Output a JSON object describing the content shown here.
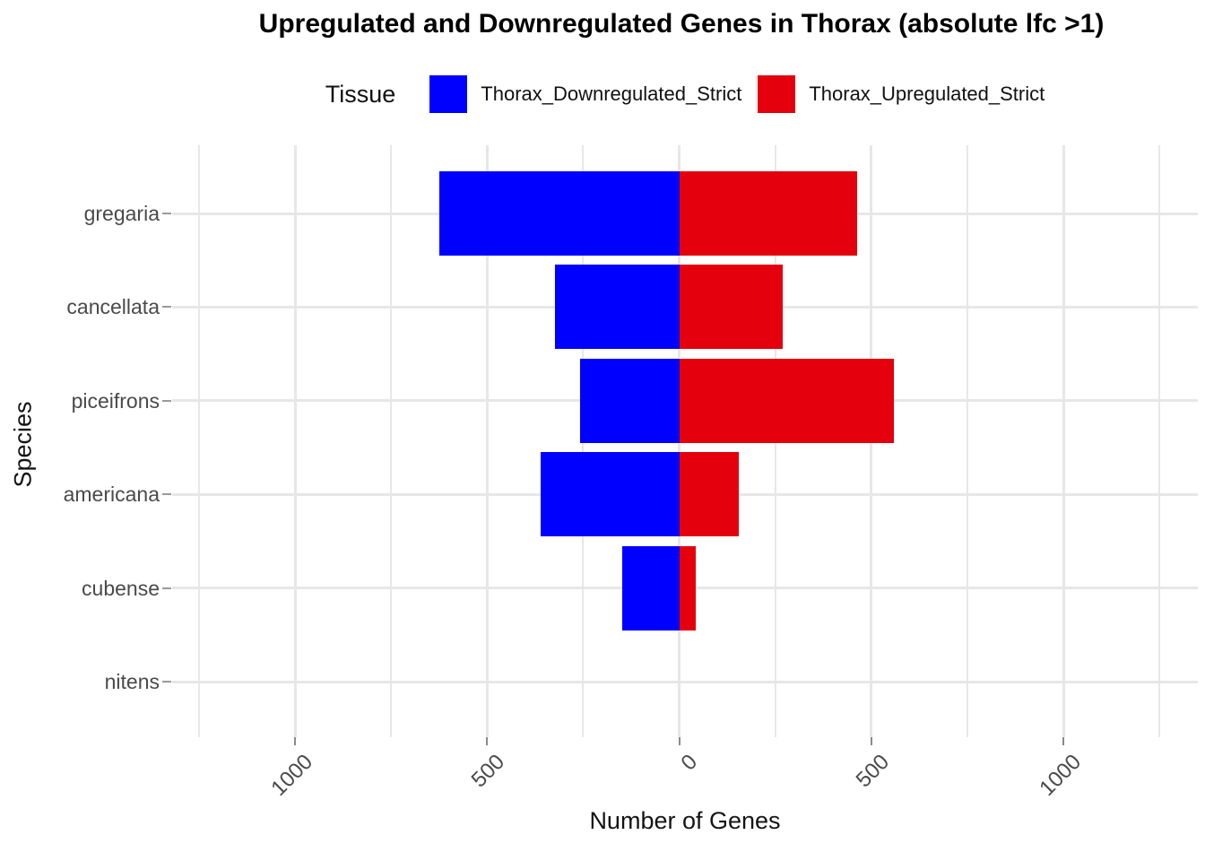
{
  "title": "Upregulated and Downregulated Genes in Thorax (absolute lfc >1)",
  "legend": {
    "title": "Tissue",
    "items": [
      {
        "label": "Thorax_Downregulated_Strict",
        "color": "#0000ff"
      },
      {
        "label": "Thorax_Upregulated_Strict",
        "color": "#e4000c"
      }
    ]
  },
  "chart_data": {
    "type": "bar",
    "orientation": "horizontal-diverging",
    "title": "Upregulated and Downregulated Genes in Thorax (absolute lfc >1)",
    "xlabel": "Number of Genes",
    "ylabel": "Species",
    "categories": [
      "gregaria",
      "cancellata",
      "piceifrons",
      "americana",
      "cubense",
      "nitens"
    ],
    "series": [
      {
        "name": "Thorax_Downregulated_Strict",
        "color": "#0000ff",
        "direction": "negative",
        "values": [
          624,
          324,
          259,
          361,
          148,
          0
        ]
      },
      {
        "name": "Thorax_Upregulated_Strict",
        "color": "#e4000c",
        "direction": "positive",
        "values": [
          464,
          269,
          558,
          156,
          44,
          0
        ]
      }
    ],
    "x_axis": {
      "domain": [
        -1320,
        1350
      ],
      "major_ticks": [
        -1000,
        -500,
        0,
        500,
        1000
      ],
      "tick_labels": [
        "1000",
        "500",
        "0",
        "500",
        "1000"
      ],
      "minor_ticks": [
        -1250,
        -750,
        -250,
        250,
        750,
        1250
      ]
    },
    "grid": true,
    "legend_position": "top",
    "bar_width_fraction": 0.9
  },
  "colors": {
    "background": "#ffffff",
    "gridline": "#e7e7e7",
    "axis_text": "#4a4a4a",
    "title_text": "#000000"
  }
}
